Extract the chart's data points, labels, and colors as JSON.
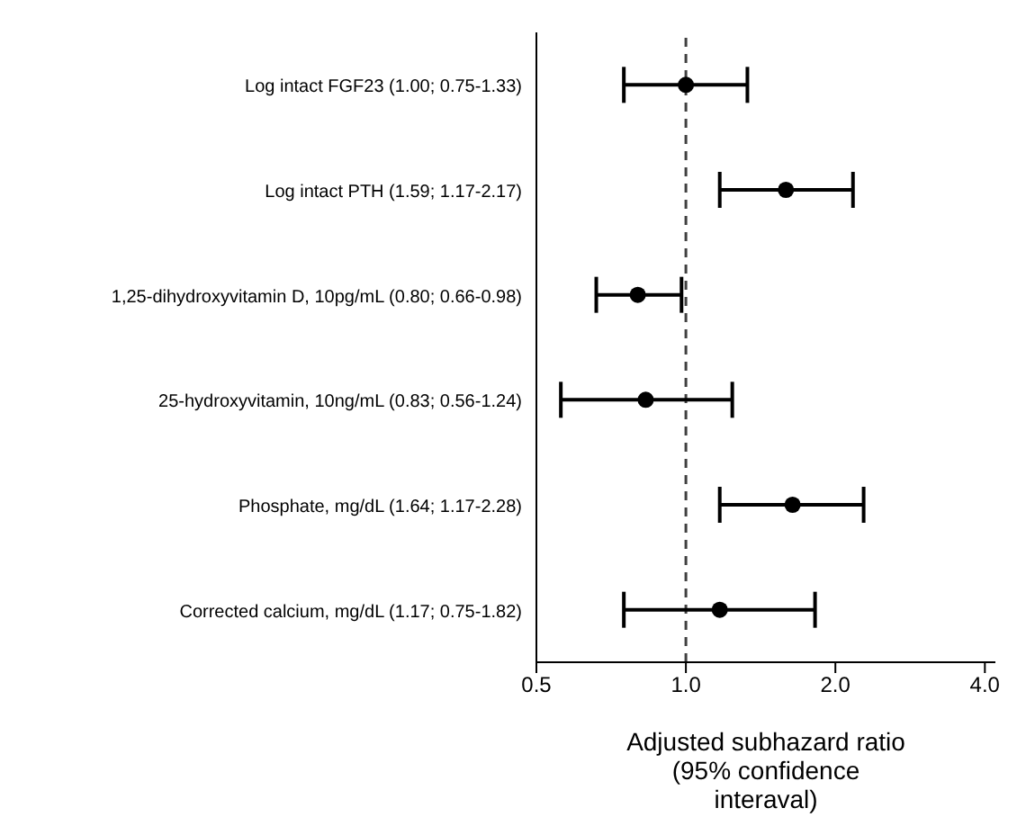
{
  "chart_data": {
    "type": "scatter",
    "orientation": "horizontal",
    "log": "x",
    "marker": "circle",
    "grid": false,
    "legend": false,
    "categories": [
      "Log intact FGF23 (1.00; 0.75-1.33)",
      "Log intact PTH (1.59; 1.17-2.17)",
      "1,25-dihydroxyvitamin D, 10pg/mL (0.80; 0.66-0.98)",
      "25-hydroxyvitamin, 10ng/mL (0.83; 0.56-1.24)",
      "Phosphate, mg/dL (1.64; 1.17-2.28)",
      "Corrected calcium, mg/dL (1.17; 0.75-1.82)"
    ],
    "series": [
      {
        "color": "#000000",
        "values": [
          1.0,
          1.59,
          0.8,
          0.83,
          1.64,
          1.17
        ],
        "errors": [
          [
            0.75,
            1.33
          ],
          [
            1.17,
            2.17
          ],
          [
            0.66,
            0.98
          ],
          [
            0.56,
            1.24
          ],
          [
            1.17,
            2.28
          ],
          [
            0.75,
            1.82
          ]
        ]
      }
    ],
    "xlim": [
      0.5,
      4.2
    ],
    "xticks": [
      {
        "value": 0.5,
        "label": "0.5"
      },
      {
        "value": 1,
        "label": "1.0"
      },
      {
        "value": 2,
        "label": "2.0"
      },
      {
        "value": 4,
        "label": "4.0"
      }
    ],
    "xlabel": "Adjusted subhazard ratio (95% confidence interaval)",
    "ref_lines": [
      {
        "axis": "x",
        "value": 1,
        "line_style": "dashed",
        "color": "#404040"
      }
    ]
  }
}
